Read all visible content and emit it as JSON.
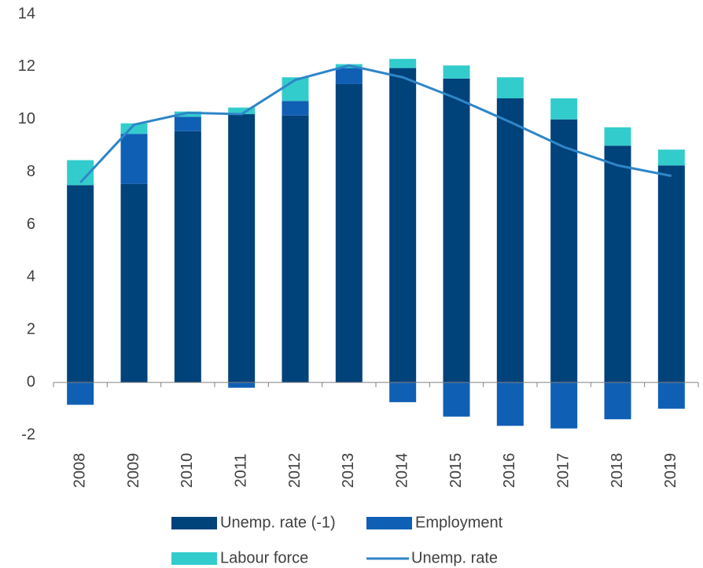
{
  "chart_data": {
    "type": "bar",
    "stacked": true,
    "categories": [
      "2008",
      "2009",
      "2010",
      "2011",
      "2012",
      "2013",
      "2014",
      "2015",
      "2016",
      "2017",
      "2018",
      "2019"
    ],
    "series": [
      {
        "name": "Unemp. rate (-1)",
        "type": "bar",
        "color": "#00427a",
        "values": [
          7.5,
          7.55,
          9.55,
          10.2,
          10.15,
          11.35,
          11.95,
          11.55,
          10.8,
          10.0,
          9.0,
          8.25
        ]
      },
      {
        "name": "Employment",
        "type": "bar",
        "color": "#0f5fb5",
        "values": [
          -0.85,
          1.9,
          0.55,
          -0.2,
          0.55,
          0.6,
          -0.75,
          -1.3,
          -1.65,
          -1.75,
          -1.4,
          -1.0
        ]
      },
      {
        "name": "Labour force",
        "type": "bar",
        "color": "#33cccc",
        "values": [
          0.95,
          0.4,
          0.2,
          0.25,
          0.9,
          0.15,
          0.35,
          0.5,
          0.8,
          0.8,
          0.7,
          0.6
        ]
      },
      {
        "name": "Unemp. rate",
        "type": "line",
        "color": "#2e86c8",
        "values": [
          7.6,
          9.8,
          10.25,
          10.2,
          11.5,
          12.05,
          11.6,
          10.8,
          9.9,
          8.95,
          8.25,
          7.85
        ]
      }
    ],
    "ylim": [
      -2,
      14
    ],
    "yticks": [
      -2,
      0,
      2,
      4,
      6,
      8,
      10,
      12,
      14
    ],
    "grid": false
  }
}
